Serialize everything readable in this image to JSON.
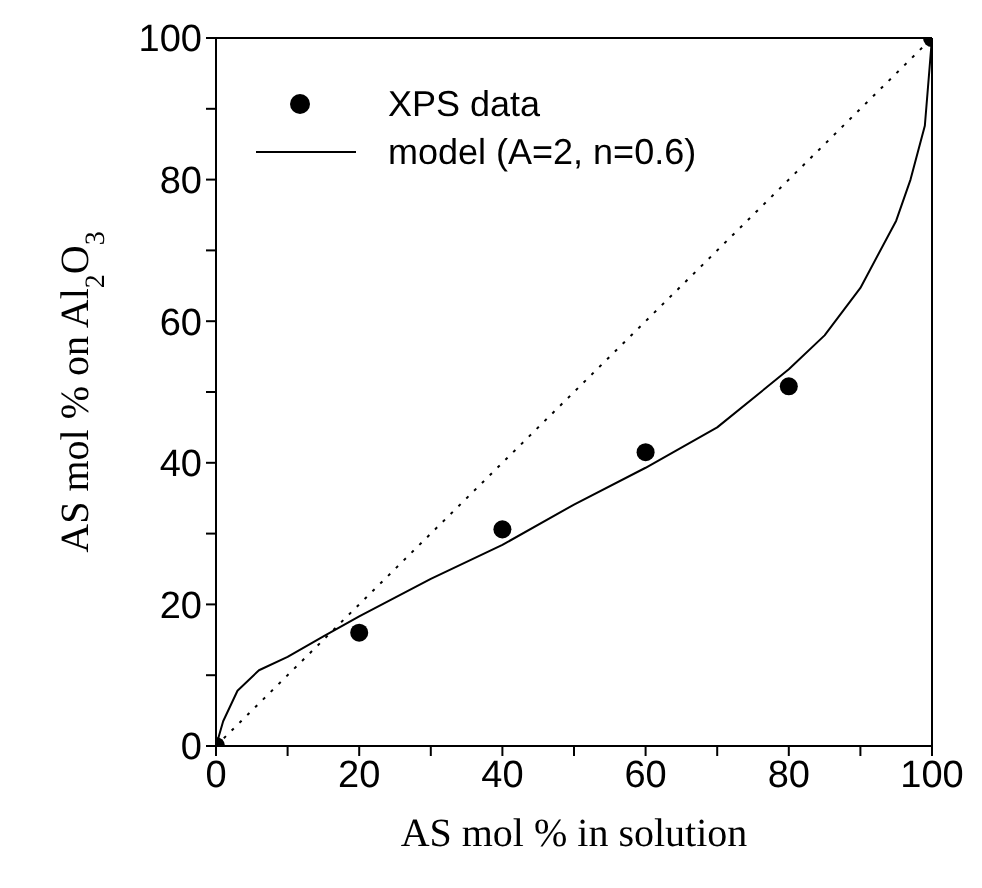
{
  "chart_data": {
    "type": "line",
    "xlabel": "AS mol % in solution",
    "ylabel": "AS mol % on Al$_{2}$O$_{3}$",
    "xlim": [
      0,
      100
    ],
    "ylim": [
      0,
      100
    ],
    "xticks": [
      0,
      {
        "value": 10,
        "label": null
      },
      20,
      {
        "value": 30,
        "label": null
      },
      40,
      {
        "value": 50,
        "label": null
      },
      60,
      {
        "value": 70,
        "label": null
      },
      80,
      {
        "value": 90,
        "label": null
      },
      100
    ],
    "yticks": [
      0,
      {
        "value": 10,
        "label": null
      },
      20,
      {
        "value": 30,
        "label": null
      },
      40,
      {
        "value": 50,
        "label": null
      },
      60,
      {
        "value": 70,
        "label": null
      },
      80,
      {
        "value": 90,
        "label": null
      },
      100
    ],
    "grid": false,
    "legend": "top left",
    "series": [
      {
        "name": "XPS data",
        "type": "scatter",
        "color": "#000000",
        "marker": "circle",
        "x": [
          0,
          20,
          40,
          60,
          80,
          100
        ],
        "values": [
          0,
          16,
          30.6,
          41.5,
          50.8,
          100
        ]
      },
      {
        "name": "model (A=2, n=0.6)",
        "color": "#000000",
        "line_style": "solid",
        "marker": "none",
        "x": [
          0,
          1,
          3,
          6,
          10,
          15,
          20,
          30,
          40,
          50,
          60,
          70,
          80,
          85,
          90,
          95,
          97,
          99,
          100
        ],
        "values": [
          0,
          3.5,
          7.8,
          10.7,
          12.6,
          15.5,
          18.3,
          23.6,
          28.4,
          34.1,
          39.3,
          45,
          53.2,
          58,
          64.7,
          74.2,
          80,
          87.6,
          100
        ]
      },
      {
        "color": "#000000",
        "line_style": "dotted",
        "marker": "none",
        "x": [
          0,
          100
        ],
        "values": [
          0,
          100
        ]
      }
    ]
  }
}
